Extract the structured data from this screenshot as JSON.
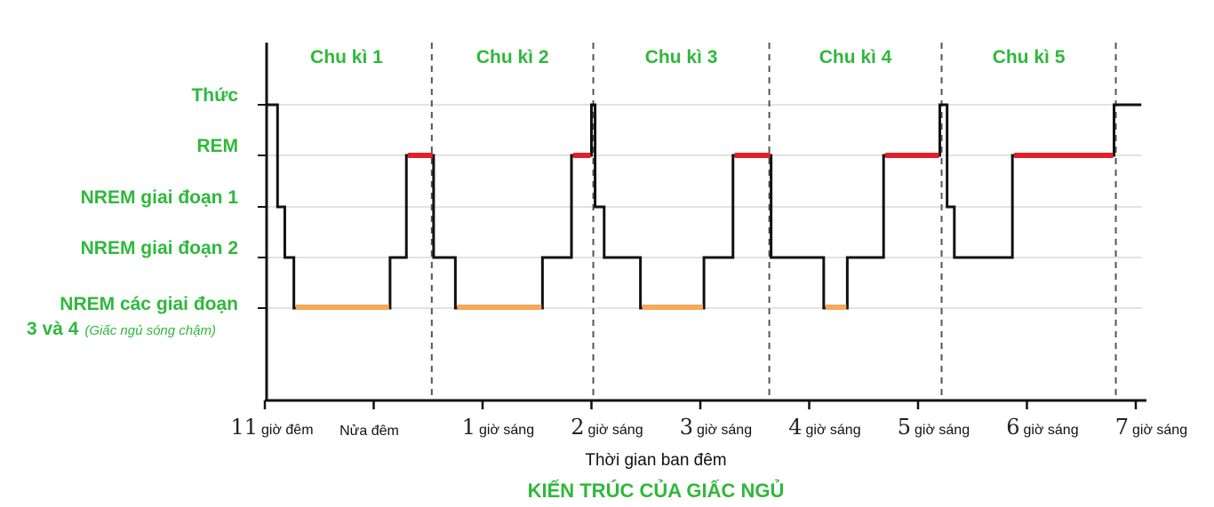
{
  "chart_data": {
    "type": "line",
    "subtype": "step-hypnogram",
    "title": "KIẾN TRÚC CỦA GIẤC NGỦ",
    "xlabel": "Thời gian ban đêm",
    "ylabel": "",
    "grid": true,
    "stages": [
      {
        "label": "Thức"
      },
      {
        "label": "REM"
      },
      {
        "label": "NREM giai đoạn 1"
      },
      {
        "label": "NREM giai đoạn 2"
      },
      {
        "label": "NREM các giai đoạn",
        "label2": "3 và 4",
        "note": "(Giấc ngủ sóng chậm)"
      }
    ],
    "x_ticks": [
      {
        "time": "23:00",
        "num": "11",
        "unit": "giờ đêm"
      },
      {
        "time": "24:00",
        "num": "",
        "unit": "Nửa đêm"
      },
      {
        "time": "25:00",
        "num": "1",
        "unit": "giờ sáng"
      },
      {
        "time": "26:00",
        "num": "2",
        "unit": "giờ sáng"
      },
      {
        "time": "27:00",
        "num": "3",
        "unit": "giờ sáng"
      },
      {
        "time": "28:00",
        "num": "4",
        "unit": "giờ sáng"
      },
      {
        "time": "29:00",
        "num": "5",
        "unit": "giờ sáng"
      },
      {
        "time": "30:00",
        "num": "6",
        "unit": "giờ sáng"
      },
      {
        "time": "31:00",
        "num": "7",
        "unit": "giờ sáng"
      }
    ],
    "cycles": [
      {
        "label": "Chu kì 1",
        "start": "23:00",
        "end": "24:32"
      },
      {
        "label": "Chu kì 2",
        "start": "24:32",
        "end": "26:01"
      },
      {
        "label": "Chu kì 3",
        "start": "26:01",
        "end": "27:38"
      },
      {
        "label": "Chu kì 4",
        "start": "27:38",
        "end": "29:13"
      },
      {
        "label": "Chu kì 5",
        "start": "29:13",
        "end": "30:49"
      }
    ],
    "cycle_dividers": [
      "24:32",
      "26:01",
      "27:38",
      "29:13",
      "30:49"
    ],
    "series": [
      {
        "points": [
          [
            "23:01",
            "Thức"
          ],
          [
            "23:07",
            "NREM giai đoạn 1"
          ],
          [
            "23:11",
            "NREM giai đoạn 2"
          ],
          [
            "23:16",
            "NREM 3-4"
          ],
          [
            "24:09",
            "NREM giai đoạn 2"
          ],
          [
            "24:18",
            "REM"
          ],
          [
            "24:33",
            "NREM giai đoạn 2"
          ],
          [
            "24:45",
            "NREM 3-4"
          ],
          [
            "25:33",
            "NREM giai đoạn 2"
          ],
          [
            "25:49",
            "REM"
          ],
          [
            "26:00",
            "Thức"
          ],
          [
            "26:02",
            "NREM giai đoạn 1"
          ],
          [
            "26:07",
            "NREM giai đoạn 2"
          ],
          [
            "26:27",
            "NREM 3-4"
          ],
          [
            "27:02",
            "NREM giai đoạn 2"
          ],
          [
            "27:18",
            "REM"
          ],
          [
            "27:39",
            "NREM giai đoạn 2"
          ],
          [
            "28:08",
            "NREM 3-4"
          ],
          [
            "28:21",
            "NREM giai đoạn 2"
          ],
          [
            "28:41",
            "REM"
          ],
          [
            "29:12",
            "Thức"
          ],
          [
            "29:16",
            "NREM giai đoạn 1"
          ],
          [
            "29:20",
            "NREM giai đoạn 2"
          ],
          [
            "29:52",
            "REM"
          ],
          [
            "30:48",
            "Thức"
          ],
          [
            "31:03",
            "Thức"
          ]
        ]
      }
    ],
    "colors": {
      "line": "#111111",
      "rem": "#e3202a",
      "slow_wave": "#f4a95a",
      "labels": "#2fb83c",
      "grid": "#d8d8d8",
      "divider": "#555555"
    }
  }
}
